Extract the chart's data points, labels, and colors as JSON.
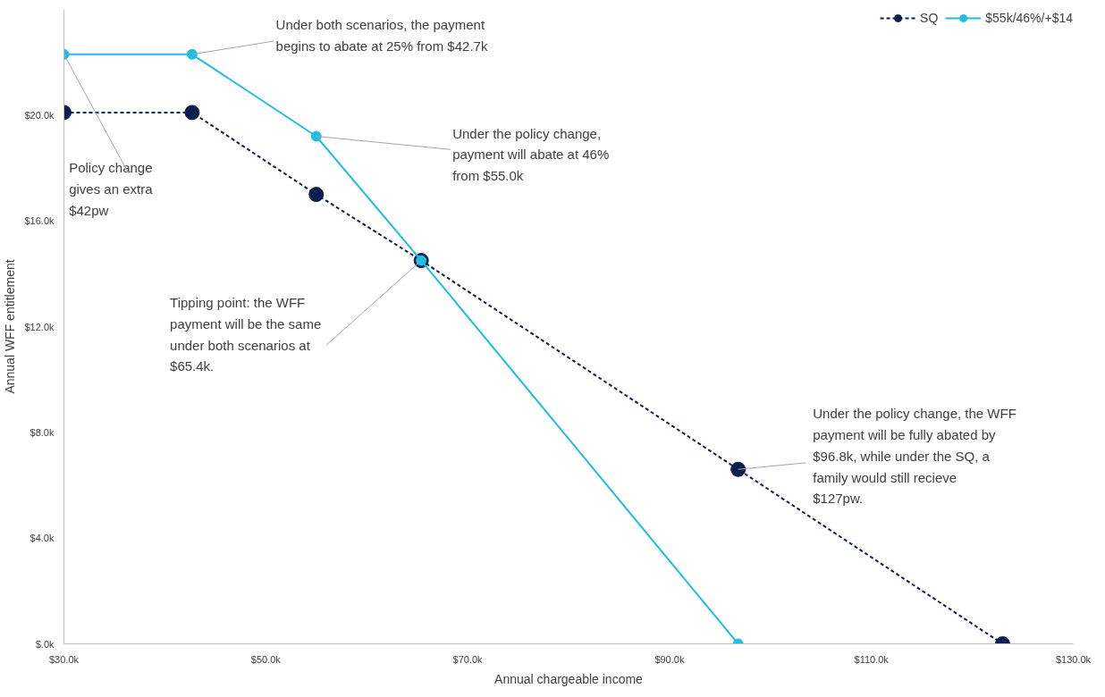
{
  "chart_data": {
    "type": "line",
    "xlabel": "Annual chargeable income",
    "ylabel": "Annual WFF entitlement",
    "xlim": [
      30,
      130
    ],
    "ylim": [
      0,
      24
    ],
    "xticks": [
      {
        "value": 30,
        "label": "$30.0k"
      },
      {
        "value": 50,
        "label": "$50.0k"
      },
      {
        "value": 70,
        "label": "$70.0k"
      },
      {
        "value": 90,
        "label": "$90.0k"
      },
      {
        "value": 110,
        "label": "$110.0k"
      },
      {
        "value": 130,
        "label": "$130.0k"
      }
    ],
    "yticks": [
      {
        "value": 0,
        "label": "$.0k"
      },
      {
        "value": 4,
        "label": "$4.0k"
      },
      {
        "value": 8,
        "label": "$8.0k"
      },
      {
        "value": 12,
        "label": "$12.0k"
      },
      {
        "value": 16,
        "label": "$16.0k"
      },
      {
        "value": 20,
        "label": "$20.0k"
      }
    ],
    "grid": false,
    "legend": "top right",
    "marker": "circle",
    "series": [
      {
        "name": "SQ",
        "color": "#0d1f4f",
        "line_style": "dashed",
        "x": [
          30,
          42.7,
          55,
          65.4,
          96.8,
          123
        ],
        "values": [
          20.1,
          20.1,
          17.0,
          14.5,
          6.6,
          0
        ]
      },
      {
        "name": "$55k/46%/+$14",
        "color": "#1fbde0",
        "line_style": "solid",
        "x": [
          30,
          42.7,
          55,
          65.4,
          96.8
        ],
        "values": [
          22.3,
          22.3,
          19.2,
          14.5,
          0
        ]
      }
    ],
    "annotations": [
      {
        "text": "Under both scenarios, the payment begins to abate at 25% from $42.7k",
        "x": 42.7,
        "y": 22.3
      },
      {
        "text": "Under the policy change, payment will abate at 46% from $55.0k",
        "x": 55,
        "y": 19.2
      },
      {
        "text": "Policy change gives an extra $42pw",
        "x": 30,
        "y": 22.3
      },
      {
        "text": "Tipping point: the WFF payment will be the same under both scenarios at $65.4k.",
        "x": 65.4,
        "y": 14.5
      },
      {
        "text": "Under the policy change, the WFF payment will be fully abated by $96.8k, while under the SQ, a family would still recieve $127pw.",
        "x": 96.8,
        "y": 6.6
      }
    ]
  }
}
